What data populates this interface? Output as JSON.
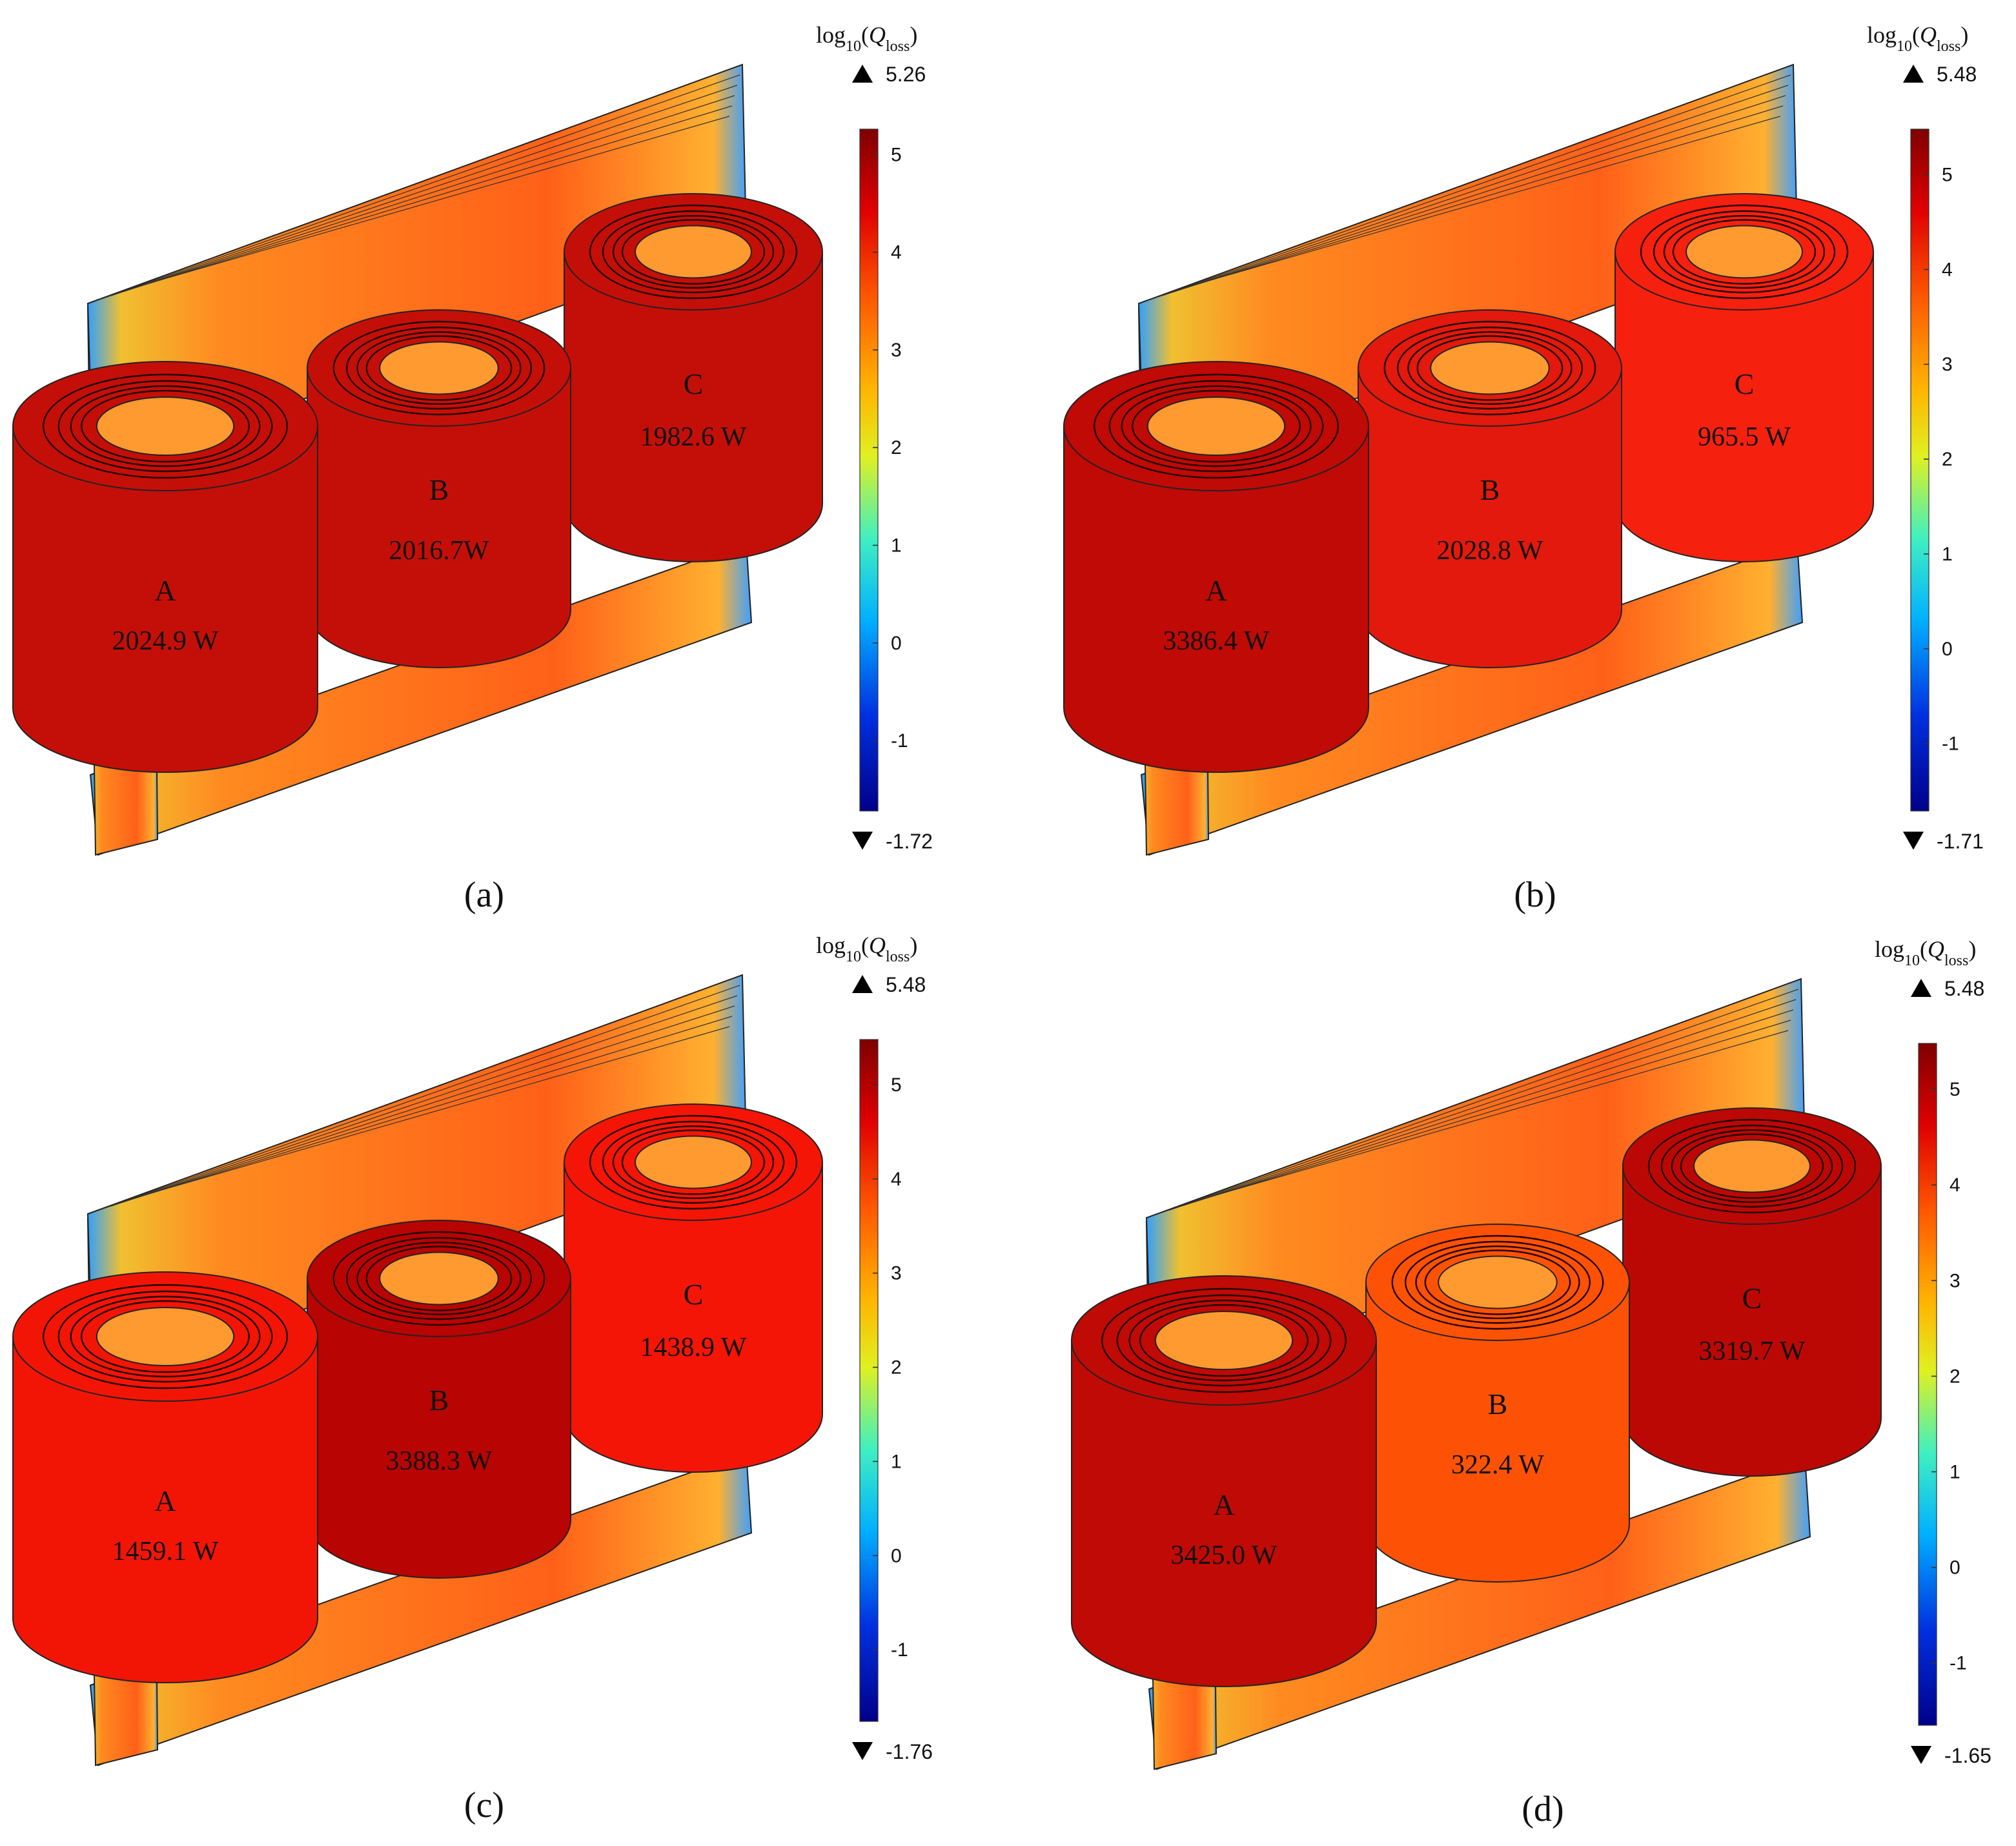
{
  "panels": [
    {
      "label": "(a)",
      "colorbar": {
        "title_parts": [
          "log",
          "10",
          "(",
          "Q",
          "loss",
          ")"
        ],
        "max": 5.26,
        "min": -1.72,
        "ticks": [
          5,
          4,
          3,
          2,
          1,
          0,
          -1
        ]
      },
      "phases": [
        {
          "name": "A",
          "loss": "2024.9 W",
          "color": "#c40f08"
        },
        {
          "name": "B",
          "loss": "2016.7W",
          "color": "#c40f08"
        },
        {
          "name": "C",
          "loss": "1982.6 W",
          "color": "#c40f08"
        }
      ]
    },
    {
      "label": "(b)",
      "colorbar": {
        "title_parts": [
          "log",
          "10",
          "(",
          "Q",
          "loss",
          ")"
        ],
        "max": 5.48,
        "min": -1.71,
        "ticks": [
          5,
          4,
          3,
          2,
          1,
          0,
          -1
        ]
      },
      "phases": [
        {
          "name": "A",
          "loss": "3386.4 W",
          "color": "#bf0a05"
        },
        {
          "name": "B",
          "loss": "2028.8 W",
          "color": "#e2190c"
        },
        {
          "name": "C",
          "loss": "965.5 W",
          "color": "#f6200f"
        }
      ]
    },
    {
      "label": "(c)",
      "colorbar": {
        "title_parts": [
          "log",
          "10",
          "(",
          "Q",
          "loss",
          ")"
        ],
        "max": 5.48,
        "min": -1.76,
        "ticks": [
          5,
          4,
          3,
          2,
          1,
          0,
          -1
        ]
      },
      "phases": [
        {
          "name": "A",
          "loss": "1459.1 W",
          "color": "#f21506"
        },
        {
          "name": "B",
          "loss": "3388.3 W",
          "color": "#b80402"
        },
        {
          "name": "C",
          "loss": "1438.9 W",
          "color": "#f41506"
        }
      ]
    },
    {
      "label": "(d)",
      "colorbar": {
        "title_parts": [
          "log",
          "10",
          "(",
          "Q",
          "loss",
          ")"
        ],
        "max": 5.48,
        "min": -1.65,
        "ticks": [
          5,
          4,
          3,
          2,
          1,
          0,
          -1
        ]
      },
      "phases": [
        {
          "name": "A",
          "loss": "3425.0 W",
          "color": "#bf0a05"
        },
        {
          "name": "B",
          "loss": "322.4 W",
          "color": "#fd5206"
        },
        {
          "name": "C",
          "loss": "3319.7 W",
          "color": "#bc0804"
        }
      ]
    }
  ]
}
